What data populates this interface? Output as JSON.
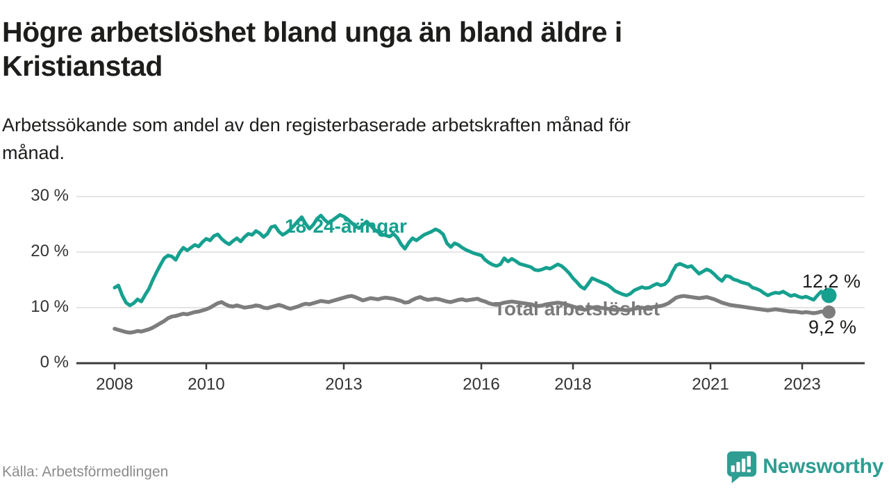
{
  "header": {
    "title_lines": [
      "Högre arbetslöshet bland unga än bland äldre i",
      "Kristianstad"
    ],
    "subtitle_lines": [
      "Arbetssökande som andel av den registerbaserade arbetskraften månad för",
      "månad."
    ]
  },
  "footer": {
    "source": "Källa: Arbetsförmedlingen",
    "brand_name": "Newsworthy"
  },
  "colors": {
    "young_line": "#16a08f",
    "total_line": "#7d7d7d",
    "total_label_text": "#7a7a7a",
    "grid": "#e4e4e4",
    "axis": "#3c3c3c",
    "brand_teal": "#2e9d92",
    "text_dark": "#1d1d1b"
  },
  "chart_data": {
    "type": "line",
    "title": "Högre arbetslöshet bland unga än bland äldre i Kristianstad",
    "subtitle": "Arbetssökande som andel av den registerbaserade arbetskraften månad för månad.",
    "xlabel": "",
    "ylabel": "",
    "x_unit": "year-month",
    "x_start_year": 2008,
    "x_months_per_point": 1,
    "x_ticks": [
      2008,
      2010,
      2013,
      2016,
      2018,
      2021,
      2023
    ],
    "y_ticks": [
      0,
      10,
      20,
      30
    ],
    "y_tick_suffix": " %",
    "ylim": [
      0,
      30
    ],
    "grid": "horizontal",
    "legend": "inline-labels",
    "series": [
      {
        "name": "18-24-åringar",
        "color": "#16a08f",
        "end_label": "12,2 %",
        "end_value": 12.2,
        "values": [
          13.6,
          14.0,
          12.2,
          10.9,
          10.4,
          10.8,
          11.5,
          11.1,
          12.3,
          13.4,
          15.0,
          16.4,
          17.7,
          18.9,
          19.4,
          19.2,
          18.6,
          19.9,
          20.8,
          20.3,
          20.8,
          21.3,
          21.0,
          21.8,
          22.4,
          22.1,
          22.9,
          23.2,
          22.4,
          21.8,
          21.4,
          22.0,
          22.5,
          21.9,
          22.7,
          23.3,
          23.1,
          23.8,
          23.4,
          22.7,
          23.3,
          24.5,
          24.7,
          23.7,
          23.1,
          23.5,
          24.1,
          24.8,
          25.6,
          26.3,
          25.1,
          24.2,
          24.9,
          26.0,
          26.6,
          25.8,
          25.2,
          25.7,
          26.2,
          26.7,
          26.4,
          25.9,
          25.3,
          24.7,
          24.3,
          24.9,
          25.5,
          24.8,
          24.1,
          23.6,
          23.2,
          23.0,
          22.8,
          23.3,
          22.6,
          21.4,
          20.6,
          21.7,
          22.5,
          22.1,
          22.6,
          23.1,
          23.4,
          23.7,
          24.1,
          23.8,
          23.2,
          21.6,
          20.9,
          21.6,
          21.3,
          20.8,
          20.4,
          20.1,
          19.8,
          19.6,
          19.4,
          18.6,
          18.1,
          17.7,
          17.5,
          17.8,
          18.9,
          18.3,
          18.8,
          18.4,
          17.9,
          17.7,
          17.5,
          17.3,
          16.8,
          16.7,
          16.9,
          17.2,
          17.0,
          17.4,
          17.8,
          17.5,
          16.9,
          16.2,
          15.3,
          14.6,
          13.8,
          13.4,
          14.3,
          15.3,
          15.0,
          14.7,
          14.4,
          14.1,
          13.6,
          13.0,
          12.7,
          12.4,
          12.2,
          12.5,
          13.1,
          13.4,
          13.7,
          13.5,
          13.6,
          14.0,
          14.3,
          14.0,
          14.2,
          14.9,
          16.4,
          17.6,
          17.9,
          17.6,
          17.3,
          17.5,
          16.8,
          16.1,
          16.5,
          16.9,
          16.6,
          16.0,
          15.3,
          14.8,
          15.7,
          15.6,
          15.1,
          14.9,
          14.6,
          14.4,
          14.2,
          13.6,
          13.4,
          13.1,
          12.6,
          12.2,
          12.5,
          12.7,
          12.6,
          12.9,
          12.5,
          12.1,
          12.3,
          12.0,
          11.8,
          12.0,
          11.7,
          11.4,
          12.2,
          12.9,
          12.3,
          12.2
        ]
      },
      {
        "name": "Total arbetslöshet",
        "color": "#7d7d7d",
        "end_label": "9,2 %",
        "end_value": 9.2,
        "values": [
          6.2,
          6.0,
          5.8,
          5.6,
          5.5,
          5.6,
          5.8,
          5.7,
          5.9,
          6.1,
          6.4,
          6.8,
          7.2,
          7.6,
          8.1,
          8.4,
          8.5,
          8.7,
          8.9,
          8.8,
          9.0,
          9.2,
          9.3,
          9.5,
          9.7,
          10.0,
          10.4,
          10.8,
          11.0,
          10.6,
          10.3,
          10.2,
          10.4,
          10.2,
          10.0,
          10.1,
          10.2,
          10.4,
          10.3,
          10.0,
          9.9,
          10.1,
          10.3,
          10.5,
          10.3,
          10.0,
          9.8,
          10.0,
          10.2,
          10.5,
          10.7,
          10.6,
          10.8,
          11.0,
          11.2,
          11.1,
          11.0,
          11.2,
          11.4,
          11.6,
          11.8,
          12.0,
          12.1,
          11.9,
          11.6,
          11.3,
          11.5,
          11.7,
          11.6,
          11.5,
          11.7,
          11.8,
          11.7,
          11.6,
          11.4,
          11.2,
          10.9,
          11.0,
          11.4,
          11.7,
          11.9,
          11.6,
          11.4,
          11.5,
          11.6,
          11.5,
          11.3,
          11.1,
          11.0,
          11.2,
          11.4,
          11.5,
          11.3,
          11.4,
          11.5,
          11.6,
          11.3,
          11.1,
          10.8,
          10.6,
          10.5,
          10.7,
          10.9,
          11.0,
          11.1,
          11.0,
          10.9,
          10.8,
          10.7,
          10.6,
          10.4,
          10.3,
          10.4,
          10.6,
          10.7,
          10.8,
          10.9,
          10.8,
          10.6,
          10.4,
          10.2,
          10.0,
          9.8,
          9.6,
          9.8,
          10.0,
          10.1,
          10.0,
          9.9,
          9.8,
          9.7,
          9.6,
          9.7,
          9.6,
          9.5,
          9.6,
          9.8,
          9.9,
          10.0,
          9.9,
          10.0,
          10.1,
          10.2,
          10.3,
          10.5,
          10.8,
          11.3,
          11.8,
          12.0,
          12.1,
          12.0,
          11.9,
          11.8,
          11.7,
          11.8,
          11.9,
          11.7,
          11.5,
          11.2,
          10.9,
          10.7,
          10.5,
          10.4,
          10.3,
          10.2,
          10.1,
          10.0,
          9.9,
          9.8,
          9.7,
          9.6,
          9.5,
          9.6,
          9.7,
          9.6,
          9.5,
          9.4,
          9.3,
          9.3,
          9.2,
          9.1,
          9.2,
          9.1,
          9.0,
          9.1,
          9.3,
          9.2,
          9.2
        ]
      }
    ]
  }
}
